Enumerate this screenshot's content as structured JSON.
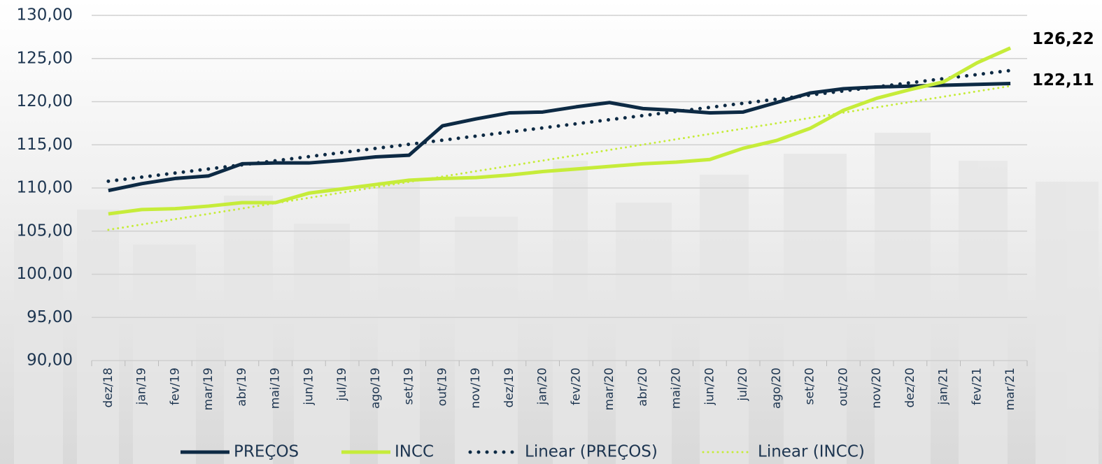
{
  "chart_data": {
    "type": "line",
    "categories": [
      "dez/18",
      "jan/19",
      "fev/19",
      "mar/19",
      "abr/19",
      "mai/19",
      "jun/19",
      "jul/19",
      "ago/19",
      "set/19",
      "out/19",
      "nov/19",
      "dez/19",
      "jan/20",
      "fev/20",
      "mar/20",
      "abr/20",
      "mai/20",
      "jun/20",
      "jul/20",
      "ago/20",
      "set/20",
      "out/20",
      "nov/20",
      "dez/20",
      "jan/21",
      "fev/21",
      "mar/21"
    ],
    "series": [
      {
        "name": "PREÇOS",
        "color": "#0d2a44",
        "values": [
          109.7,
          110.5,
          111.1,
          111.4,
          112.8,
          112.9,
          112.9,
          113.2,
          113.6,
          113.8,
          117.2,
          118.0,
          118.7,
          118.8,
          119.4,
          119.9,
          119.2,
          119.0,
          118.7,
          118.8,
          119.9,
          121.0,
          121.5,
          121.7,
          121.8,
          121.9,
          122.0,
          122.11
        ],
        "value_labels": [
          null,
          null,
          null,
          null,
          null,
          null,
          null,
          null,
          null,
          null,
          null,
          null,
          null,
          null,
          null,
          null,
          null,
          null,
          null,
          null,
          null,
          null,
          null,
          null,
          null,
          null,
          null,
          "122,11"
        ]
      },
      {
        "name": "INCC",
        "color": "#c6ec3a",
        "values": [
          107.0,
          107.5,
          107.6,
          107.9,
          108.3,
          108.3,
          109.4,
          109.9,
          110.4,
          110.9,
          111.1,
          111.2,
          111.5,
          111.9,
          112.2,
          112.5,
          112.8,
          113.0,
          113.3,
          114.6,
          115.5,
          116.9,
          119.0,
          120.4,
          121.4,
          122.3,
          124.5,
          126.22
        ],
        "value_labels": [
          null,
          null,
          null,
          null,
          null,
          null,
          null,
          null,
          null,
          null,
          null,
          null,
          null,
          null,
          null,
          null,
          null,
          null,
          null,
          null,
          null,
          null,
          null,
          null,
          null,
          null,
          null,
          "126,22"
        ]
      }
    ],
    "trendlines": [
      {
        "name": "Linear (PREÇOS)",
        "series": 0,
        "color": "#0d2a44",
        "style": "dotted"
      },
      {
        "name": "Linear (INCC)",
        "series": 1,
        "color": "#c6ec3a",
        "style": "dotted"
      }
    ],
    "ylim": [
      90,
      130
    ],
    "yticks": [
      {
        "value": 90,
        "label": "90,00"
      },
      {
        "value": 95,
        "label": "95,00"
      },
      {
        "value": 100,
        "label": "100,00"
      },
      {
        "value": 105,
        "label": "105,00"
      },
      {
        "value": 110,
        "label": "110,00"
      },
      {
        "value": 115,
        "label": "115,00"
      },
      {
        "value": 120,
        "label": "120,00"
      },
      {
        "value": 125,
        "label": "125,00"
      },
      {
        "value": 130,
        "label": "130,00"
      }
    ],
    "grid": true,
    "legend": "bottom"
  }
}
